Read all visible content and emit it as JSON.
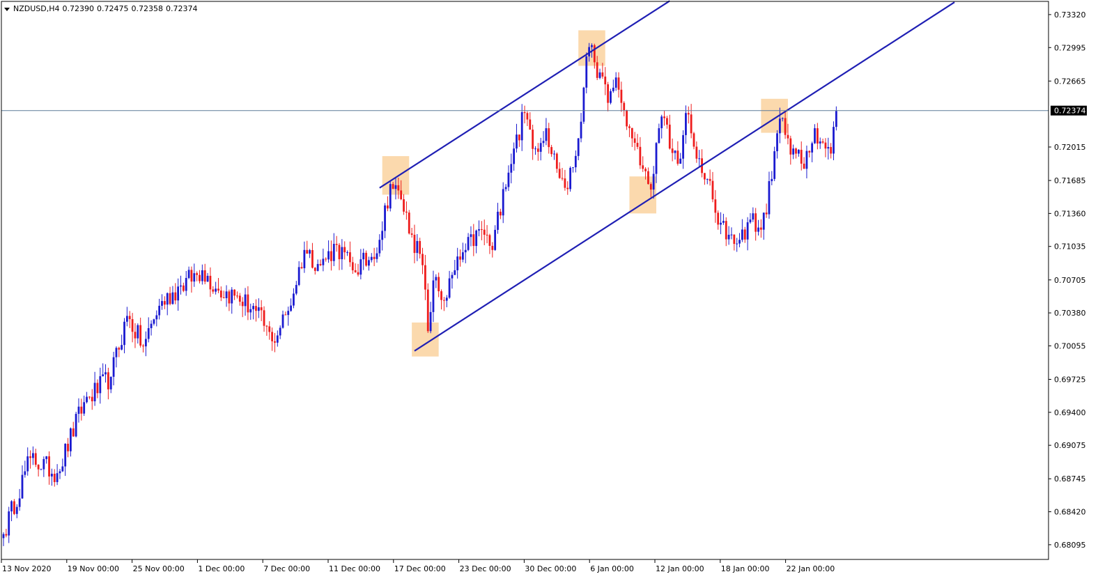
{
  "header": {
    "symbol": "NZDUSD,H4",
    "open": "0.72390",
    "high": "0.72475",
    "low": "0.72358",
    "close": "0.72374"
  },
  "colors": {
    "bull": "#1a1ad0",
    "bear": "#ee1c1c",
    "trendline": "#1f1fb4",
    "highlight": "#f9c98a",
    "price_line": "#5c7a99",
    "axis": "#000000"
  },
  "chart_data": {
    "type": "candlestick",
    "symbol": "NZDUSD",
    "timeframe": "H4",
    "ylim": [
      0.6795,
      0.7345
    ],
    "y_ticks": [
      "0.73320",
      "0.72995",
      "0.72665",
      "0.72015",
      "0.71685",
      "0.71360",
      "0.71035",
      "0.70705",
      "0.70380",
      "0.70055",
      "0.69725",
      "0.69400",
      "0.69075",
      "0.68745",
      "0.68420",
      "0.68095"
    ],
    "x_ticks": [
      "13 Nov 2020",
      "19 Nov 00:00",
      "25 Nov 00:00",
      "1 Dec 00:00",
      "7 Dec 00:00",
      "11 Dec 00:00",
      "17 Dec 00:00",
      "23 Dec 00:00",
      "30 Dec 00:00",
      "6 Jan 00:00",
      "12 Jan 00:00",
      "18 Jan 00:00",
      "22 Jan 00:00"
    ],
    "current_price": "0.72374",
    "anchors": [
      [
        0,
        0.682
      ],
      [
        10,
        0.6895
      ],
      [
        20,
        0.688
      ],
      [
        30,
        0.695
      ],
      [
        40,
        0.6975
      ],
      [
        46,
        0.7035
      ],
      [
        52,
        0.7005
      ],
      [
        58,
        0.7045
      ],
      [
        66,
        0.7065
      ],
      [
        74,
        0.708
      ],
      [
        80,
        0.706
      ],
      [
        86,
        0.7055
      ],
      [
        94,
        0.704
      ],
      [
        100,
        0.701
      ],
      [
        106,
        0.704
      ],
      [
        112,
        0.71
      ],
      [
        118,
        0.7085
      ],
      [
        124,
        0.7105
      ],
      [
        130,
        0.708
      ],
      [
        136,
        0.709
      ],
      [
        140,
        0.711
      ],
      [
        144,
        0.7165
      ],
      [
        148,
        0.715
      ],
      [
        152,
        0.7115
      ],
      [
        156,
        0.7085
      ],
      [
        158,
        0.702
      ],
      [
        160,
        0.707
      ],
      [
        164,
        0.705
      ],
      [
        168,
        0.708
      ],
      [
        172,
        0.71
      ],
      [
        178,
        0.712
      ],
      [
        182,
        0.71
      ],
      [
        186,
        0.716
      ],
      [
        190,
        0.72
      ],
      [
        194,
        0.7235
      ],
      [
        198,
        0.72
      ],
      [
        202,
        0.722
      ],
      [
        206,
        0.718
      ],
      [
        210,
        0.716
      ],
      [
        214,
        0.721
      ],
      [
        216,
        0.726
      ],
      [
        218,
        0.73
      ],
      [
        220,
        0.7285
      ],
      [
        222,
        0.7275
      ],
      [
        225,
        0.7245
      ],
      [
        228,
        0.727
      ],
      [
        230,
        0.7245
      ],
      [
        234,
        0.721
      ],
      [
        238,
        0.718
      ],
      [
        240,
        0.7165
      ],
      [
        242,
        0.7175
      ],
      [
        244,
        0.722
      ],
      [
        246,
        0.723
      ],
      [
        248,
        0.72
      ],
      [
        252,
        0.719
      ],
      [
        254,
        0.7235
      ],
      [
        256,
        0.7215
      ],
      [
        258,
        0.719
      ],
      [
        262,
        0.717
      ],
      [
        266,
        0.7125
      ],
      [
        270,
        0.7115
      ],
      [
        274,
        0.711
      ],
      [
        278,
        0.713
      ],
      [
        282,
        0.712
      ],
      [
        286,
        0.717
      ],
      [
        288,
        0.7215
      ],
      [
        290,
        0.723
      ],
      [
        292,
        0.721
      ],
      [
        294,
        0.72
      ],
      [
        298,
        0.718
      ],
      [
        302,
        0.722
      ],
      [
        306,
        0.72
      ],
      [
        308,
        0.7195
      ],
      [
        310,
        0.7237
      ]
    ],
    "trendlines": [
      {
        "name": "upper channel",
        "points": [
          [
            140,
            0.71612
          ],
          [
            248,
            0.73455
          ]
        ]
      },
      {
        "name": "lower channel",
        "points": [
          [
            153,
            0.70005
          ],
          [
            354,
            0.73442
          ]
        ]
      }
    ],
    "highlights": [
      {
        "x": [
          141,
          151
        ],
        "y": [
          0.71545,
          0.71925
        ]
      },
      {
        "x": [
          152,
          162
        ],
        "y": [
          0.6995,
          0.70285
        ]
      },
      {
        "x": [
          214,
          224
        ],
        "y": [
          0.72815,
          0.73165
        ]
      },
      {
        "x": [
          233,
          243
        ],
        "y": [
          0.7136,
          0.71725
        ]
      },
      {
        "x": [
          282,
          292
        ],
        "y": [
          0.72155,
          0.7249
        ]
      }
    ]
  }
}
